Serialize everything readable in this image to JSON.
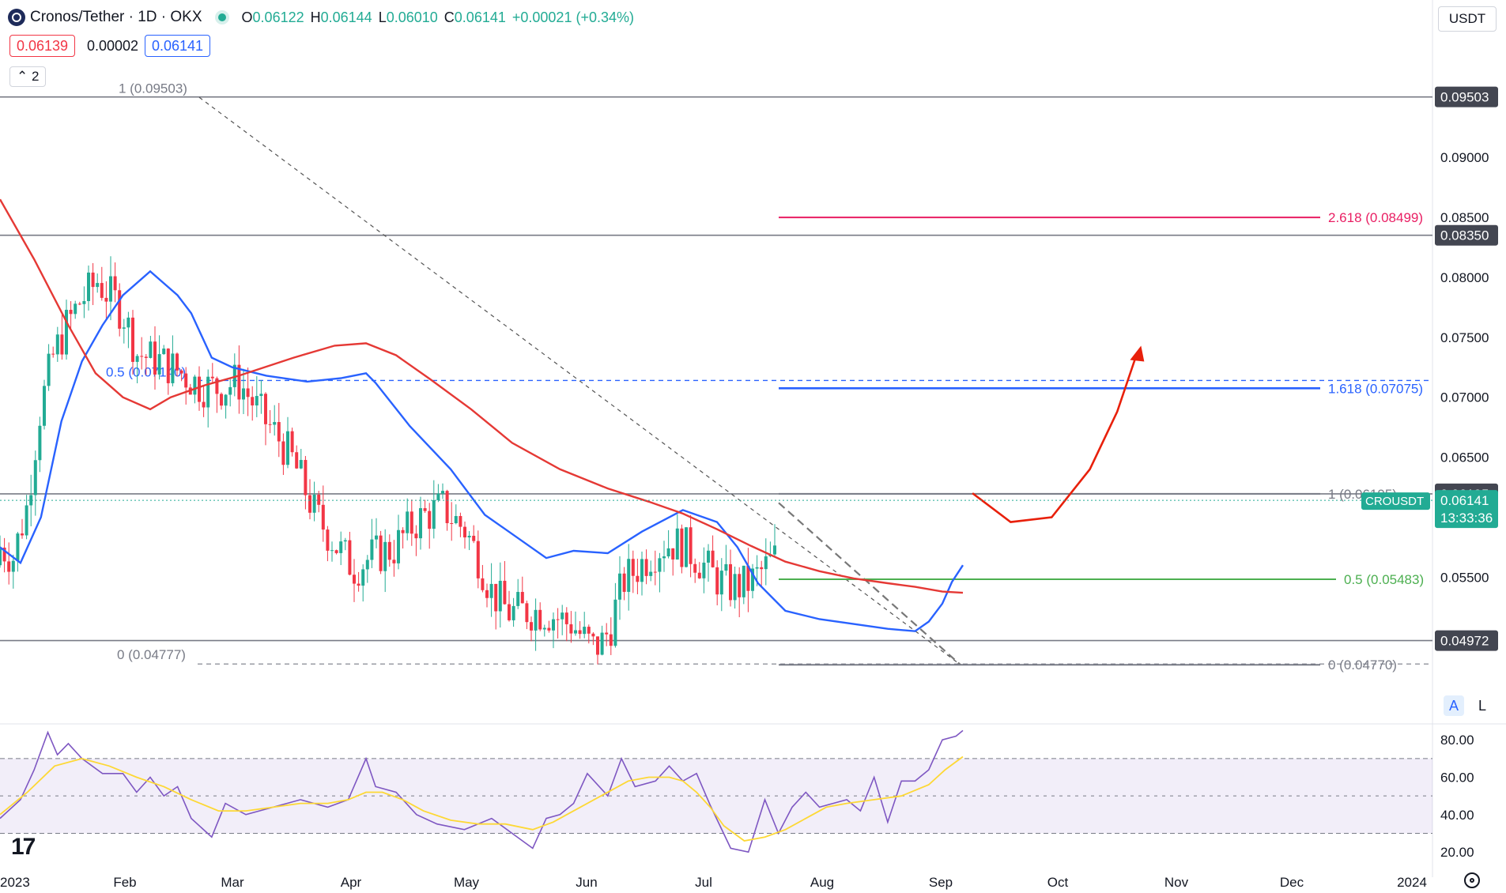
{
  "header": {
    "symbol": "Cronos/Tether · 1D · OKX",
    "ohlc": [
      {
        "k": "O",
        "v": "0.06122"
      },
      {
        "k": "H",
        "v": "0.06144"
      },
      {
        "k": "L",
        "v": "0.06010"
      },
      {
        "k": "C",
        "v": "0.06141"
      },
      {
        "k": "",
        "v": "+0.00021 (+0.34%)"
      }
    ],
    "bid": "0.06139",
    "spread": "0.00002",
    "ask": "0.06141",
    "indicators_collapsed": "2",
    "currency": "USDT",
    "scale_auto": "A",
    "scale_log": "L"
  },
  "colors": {
    "up": "#22ab94",
    "down": "#f23645",
    "ma_fast": "#2962ff",
    "ma_slow": "#e53935",
    "fib_618": "#2962ff",
    "fib_2618": "#e91e63",
    "fib_05": "#4caf50",
    "rsi": "#7e57c2",
    "rsi_ma": "#fdd835"
  },
  "chart_data": [
    {
      "type": "candlestick",
      "title": "Cronos/Tether · 1D · OKX",
      "y_range": [
        0.0435,
        0.0985
      ],
      "x_labels": [
        "2023",
        "Feb",
        "Mar",
        "Apr",
        "May",
        "Jun",
        "Jul",
        "Aug",
        "Sep",
        "Oct",
        "Nov",
        "Dec",
        "2024"
      ],
      "y_ticks": [
        "0.09000",
        "0.08000",
        "0.07500",
        "0.07000",
        "0.06500",
        "0.05500"
      ],
      "price_tags": [
        {
          "label": "0.09503",
          "value": 0.09503
        },
        {
          "label": "0.08500",
          "value": 0.085
        },
        {
          "label": "0.08350",
          "value": 0.0835
        },
        {
          "label": "0.06195",
          "value": 0.06195
        },
        {
          "label": "0.04972",
          "value": 0.04972
        }
      ],
      "current_price": {
        "symbol": "CROUSDT",
        "price": "0.06141",
        "countdown": "13:33:36",
        "value": 0.06141
      },
      "horizontal_levels": [
        0.09503,
        0.0835,
        0.06195,
        0.04972
      ],
      "fib_left": [
        {
          "label": "1 (0.09503)",
          "value": 0.09503
        },
        {
          "label": "0.5 (0.07140)",
          "value": 0.0714
        },
        {
          "label": "0 (0.04777)",
          "value": 0.04777
        }
      ],
      "fib_right": [
        {
          "label": "2.618 (0.08499)",
          "value": 0.08499
        },
        {
          "label": "1.618 (0.07075)",
          "value": 0.07075
        },
        {
          "label": "1 (0.06195)",
          "value": 0.06195
        },
        {
          "label": "0.5 (0.05483)",
          "value": 0.05483
        },
        {
          "label": "0 (0.04770)",
          "value": 0.0477
        }
      ],
      "series": [
        {
          "name": "",
          "kind": "ma_fast",
          "points": [
            [
              0,
              0.0575
            ],
            [
              15,
              0.0562
            ],
            [
              30,
              0.06
            ],
            [
              45,
              0.068
            ],
            [
              60,
              0.073
            ],
            [
              75,
              0.076
            ],
            [
              90,
              0.0785
            ],
            [
              110,
              0.0805
            ],
            [
              120,
              0.0795
            ],
            [
              130,
              0.0785
            ],
            [
              140,
              0.077
            ],
            [
              155,
              0.0733
            ],
            [
              170,
              0.0725
            ],
            [
              195,
              0.0718
            ],
            [
              225,
              0.0713
            ],
            [
              250,
              0.0716
            ],
            [
              268,
              0.072
            ],
            [
              275,
              0.0712
            ],
            [
              300,
              0.0676
            ],
            [
              330,
              0.064
            ],
            [
              355,
              0.0602
            ],
            [
              380,
              0.0582
            ],
            [
              400,
              0.0566
            ],
            [
              420,
              0.0572
            ],
            [
              445,
              0.057
            ],
            [
              470,
              0.0588
            ],
            [
              500,
              0.0606
            ],
            [
              525,
              0.0596
            ],
            [
              540,
              0.0575
            ],
            [
              555,
              0.0545
            ],
            [
              575,
              0.0522
            ],
            [
              600,
              0.0515
            ],
            [
              625,
              0.0511
            ],
            [
              650,
              0.0507
            ],
            [
              670,
              0.0505
            ],
            [
              680,
              0.0513
            ],
            [
              690,
              0.0528
            ],
            [
              697,
              0.0546
            ],
            [
              705,
              0.056
            ]
          ]
        },
        {
          "name": "",
          "kind": "ma_slow",
          "points": [
            [
              0,
              0.0865
            ],
            [
              25,
              0.0815
            ],
            [
              50,
              0.076
            ],
            [
              70,
              0.072
            ],
            [
              90,
              0.07
            ],
            [
              110,
              0.069
            ],
            [
              125,
              0.07
            ],
            [
              150,
              0.071
            ],
            [
              175,
              0.0718
            ],
            [
              215,
              0.0733
            ],
            [
              245,
              0.0743
            ],
            [
              268,
              0.0745
            ],
            [
              290,
              0.0735
            ],
            [
              315,
              0.0715
            ],
            [
              345,
              0.069
            ],
            [
              375,
              0.0662
            ],
            [
              410,
              0.064
            ],
            [
              445,
              0.0624
            ],
            [
              475,
              0.0613
            ],
            [
              500,
              0.0603
            ],
            [
              525,
              0.059
            ],
            [
              550,
              0.0576
            ],
            [
              575,
              0.0563
            ],
            [
              600,
              0.0555
            ],
            [
              625,
              0.0549
            ],
            [
              650,
              0.0545
            ],
            [
              670,
              0.0542
            ],
            [
              690,
              0.0538
            ],
            [
              705,
              0.0537
            ]
          ]
        }
      ],
      "projection": [
        [
          712,
          0.062
        ],
        [
          740,
          0.0596
        ],
        [
          770,
          0.06
        ],
        [
          798,
          0.064
        ],
        [
          818,
          0.0688
        ],
        [
          832,
          0.0735
        ]
      ]
    },
    {
      "type": "line",
      "title": "RSI",
      "y_range": [
        15,
        86
      ],
      "y_ticks": [
        "80.00",
        "60.00",
        "40.00",
        "20.00"
      ],
      "band": [
        30,
        70
      ],
      "series": [
        {
          "name": "",
          "kind": "rsi",
          "points": [
            [
              0,
              38
            ],
            [
              15,
              48
            ],
            [
              25,
              64
            ],
            [
              35,
              84
            ],
            [
              42,
              72
            ],
            [
              50,
              78
            ],
            [
              60,
              70
            ],
            [
              75,
              62
            ],
            [
              90,
              62
            ],
            [
              100,
              52
            ],
            [
              110,
              60
            ],
            [
              120,
              50
            ],
            [
              130,
              55
            ],
            [
              140,
              38
            ],
            [
              155,
              28
            ],
            [
              165,
              46
            ],
            [
              180,
              40
            ],
            [
              200,
              44
            ],
            [
              220,
              48
            ],
            [
              240,
              44
            ],
            [
              255,
              48
            ],
            [
              268,
              70
            ],
            [
              275,
              55
            ],
            [
              290,
              52
            ],
            [
              305,
              40
            ],
            [
              320,
              35
            ],
            [
              340,
              32
            ],
            [
              360,
              38
            ],
            [
              375,
              30
            ],
            [
              390,
              22
            ],
            [
              400,
              38
            ],
            [
              410,
              40
            ],
            [
              420,
              46
            ],
            [
              430,
              62
            ],
            [
              445,
              50
            ],
            [
              455,
              70
            ],
            [
              465,
              55
            ],
            [
              480,
              58
            ],
            [
              490,
              66
            ],
            [
              500,
              58
            ],
            [
              510,
              62
            ],
            [
              520,
              45
            ],
            [
              535,
              22
            ],
            [
              548,
              20
            ],
            [
              560,
              48
            ],
            [
              570,
              30
            ],
            [
              580,
              44
            ],
            [
              590,
              52
            ],
            [
              600,
              44
            ],
            [
              610,
              46
            ],
            [
              620,
              48
            ],
            [
              630,
              42
            ],
            [
              640,
              60
            ],
            [
              650,
              36
            ],
            [
              660,
              58
            ],
            [
              670,
              58
            ],
            [
              680,
              64
            ],
            [
              690,
              80
            ],
            [
              700,
              82
            ],
            [
              705,
              85
            ]
          ]
        },
        {
          "name": "",
          "kind": "rsi_ma",
          "points": [
            [
              0,
              40
            ],
            [
              20,
              52
            ],
            [
              40,
              66
            ],
            [
              60,
              70
            ],
            [
              80,
              66
            ],
            [
              100,
              60
            ],
            [
              120,
              55
            ],
            [
              140,
              48
            ],
            [
              160,
              42
            ],
            [
              180,
              42
            ],
            [
              200,
              44
            ],
            [
              220,
              46
            ],
            [
              240,
              46
            ],
            [
              255,
              48
            ],
            [
              268,
              52
            ],
            [
              280,
              52
            ],
            [
              295,
              48
            ],
            [
              310,
              42
            ],
            [
              330,
              37
            ],
            [
              350,
              35
            ],
            [
              370,
              35
            ],
            [
              390,
              32
            ],
            [
              405,
              36
            ],
            [
              420,
              42
            ],
            [
              440,
              50
            ],
            [
              460,
              58
            ],
            [
              475,
              60
            ],
            [
              490,
              60
            ],
            [
              500,
              58
            ],
            [
              510,
              52
            ],
            [
              520,
              44
            ],
            [
              530,
              34
            ],
            [
              545,
              26
            ],
            [
              560,
              28
            ],
            [
              575,
              32
            ],
            [
              590,
              38
            ],
            [
              605,
              44
            ],
            [
              620,
              46
            ],
            [
              640,
              48
            ],
            [
              660,
              50
            ],
            [
              680,
              56
            ],
            [
              692,
              64
            ],
            [
              705,
              71
            ]
          ]
        }
      ]
    }
  ]
}
